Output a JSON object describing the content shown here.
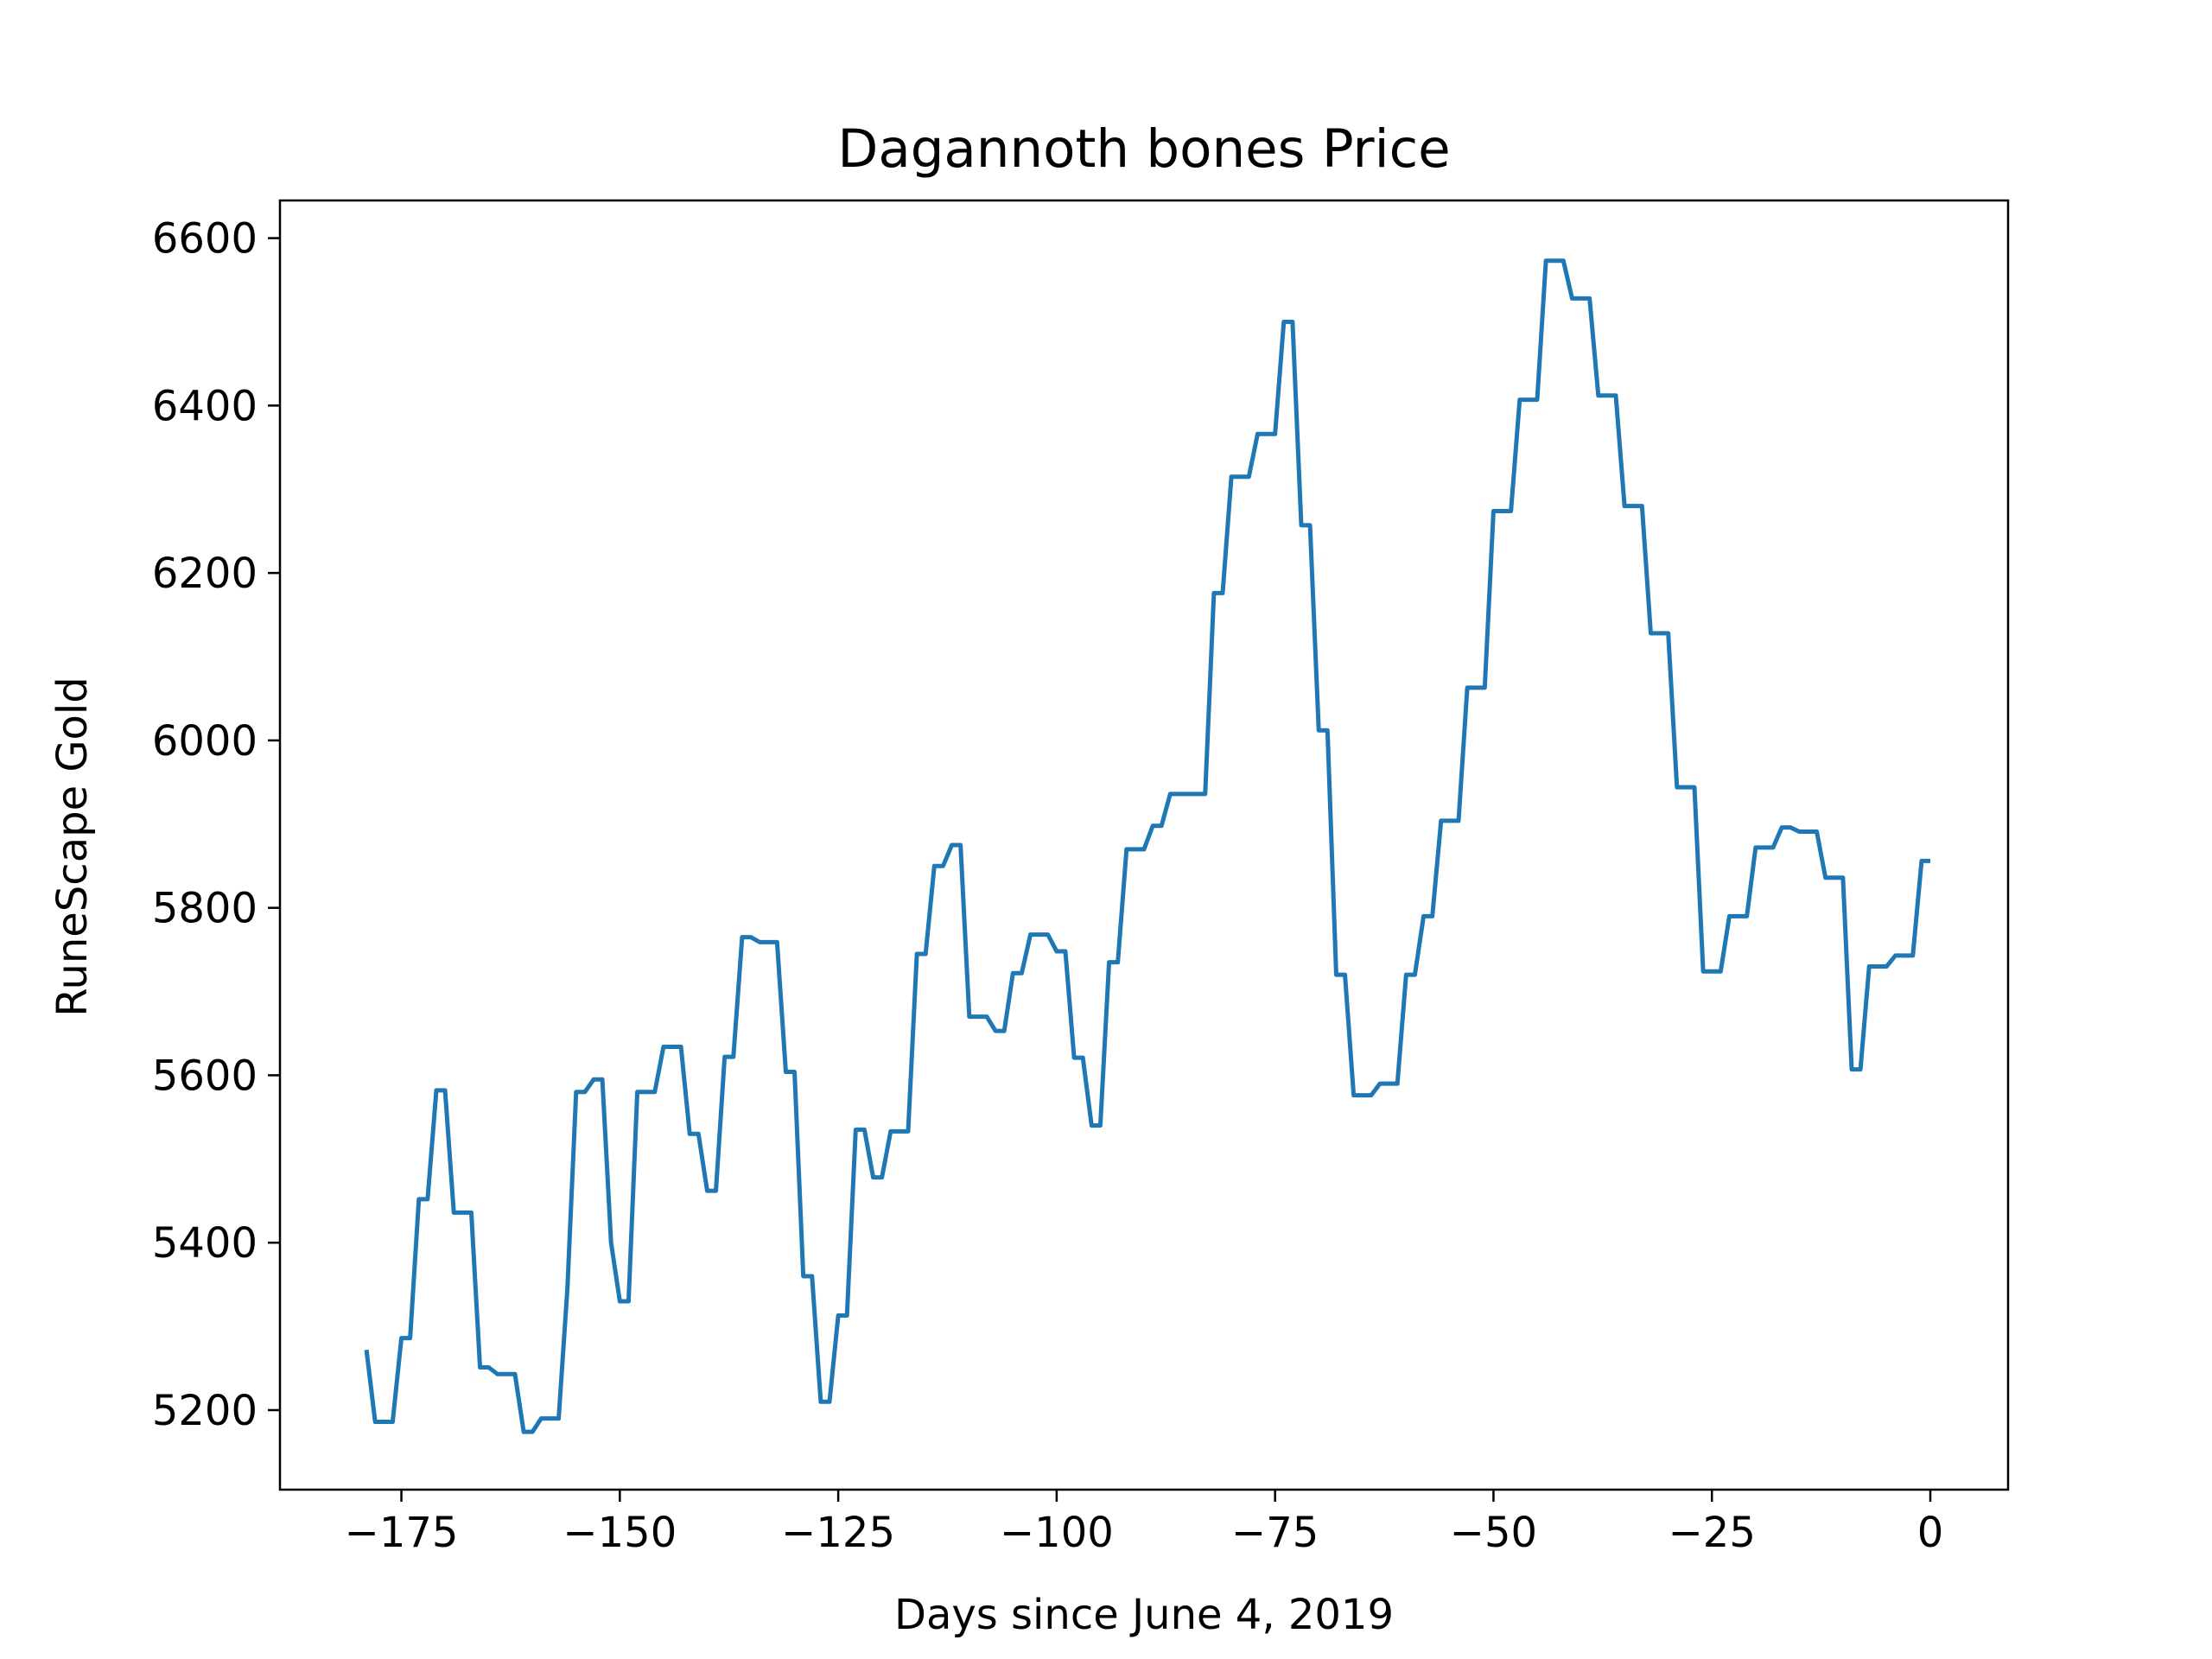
{
  "chart_data": {
    "type": "line",
    "title": "Dagannoth bones Price",
    "xlabel": "Days since June 4, 2019",
    "ylabel": "RuneScape Gold",
    "xlim": [
      -188.9,
      8.9
    ],
    "ylim": [
      5105,
      6645
    ],
    "x_ticks": [
      -175,
      -150,
      -125,
      -100,
      -75,
      -50,
      -25,
      0
    ],
    "x_tick_labels": [
      "−175",
      "−150",
      "−125",
      "−100",
      "−75",
      "−50",
      "−25",
      "0"
    ],
    "y_ticks": [
      5200,
      5400,
      5600,
      5800,
      6000,
      6200,
      6400,
      6600
    ],
    "y_tick_labels": [
      "5200",
      "5400",
      "5600",
      "5800",
      "6000",
      "6200",
      "6400",
      "6600"
    ],
    "grid": false,
    "series_color": "#1f77b4",
    "series": [
      {
        "x": [
          -179,
          -178,
          -177,
          -176,
          -175,
          -174,
          -173,
          -172,
          -171,
          -170,
          -169,
          -168,
          -167,
          -166,
          -165,
          -164,
          -163,
          -162,
          -161,
          -160,
          -159,
          -158,
          -157,
          -156,
          -155,
          -154,
          -153,
          -152,
          -151,
          -150,
          -149,
          -148,
          -147,
          -146,
          -145,
          -144,
          -143,
          -142,
          -141,
          -140,
          -139,
          -138,
          -137,
          -136,
          -135,
          -134,
          -133,
          -132,
          -131,
          -130,
          -129,
          -128,
          -127,
          -126,
          -125,
          -124,
          -123,
          -122,
          -121,
          -120,
          -119,
          -118,
          -117,
          -116,
          -115,
          -114,
          -113,
          -112,
          -111,
          -110,
          -109,
          -108,
          -107,
          -106,
          -105,
          -104,
          -103,
          -102,
          -101,
          -100,
          -99,
          -98,
          -97,
          -96,
          -95,
          -94,
          -93,
          -92,
          -91,
          -90,
          -89,
          -88,
          -87,
          -86,
          -85,
          -84,
          -83,
          -82,
          -81,
          -80,
          -79,
          -78,
          -77,
          -76,
          -75,
          -74,
          -73,
          -72,
          -71,
          -70,
          -69,
          -68,
          -67,
          -66,
          -65,
          -64,
          -63,
          -62,
          -61,
          -60,
          -59,
          -58,
          -57,
          -56,
          -55,
          -54,
          -53,
          -52,
          -51,
          -50,
          -49,
          -48,
          -47,
          -46,
          -45,
          -44,
          -43,
          -42,
          -41,
          -40,
          -39,
          -38,
          -37,
          -36,
          -35,
          -34,
          -33,
          -32,
          -31,
          -30,
          -29,
          -28,
          -27,
          -26,
          -25,
          -24,
          -23,
          -22,
          -21,
          -20,
          -19,
          -18,
          -17,
          -16,
          -15,
          -14,
          -13,
          -12,
          -11,
          -10,
          -9,
          -8,
          -7,
          -6,
          -5,
          -4,
          -3,
          -2,
          -1,
          0
        ],
        "y": [
          5272,
          5186,
          5186,
          5186,
          5286,
          5286,
          5452,
          5452,
          5582,
          5582,
          5436,
          5436,
          5436,
          5251,
          5251,
          5243,
          5243,
          5243,
          5174,
          5174,
          5190,
          5190,
          5190,
          5345,
          5580,
          5580,
          5595,
          5595,
          5400,
          5330,
          5330,
          5580,
          5580,
          5580,
          5634,
          5634,
          5634,
          5530,
          5530,
          5462,
          5462,
          5622,
          5622,
          5765,
          5765,
          5759,
          5759,
          5759,
          5604,
          5604,
          5360,
          5360,
          5210,
          5210,
          5313,
          5313,
          5535,
          5535,
          5478,
          5478,
          5533,
          5533,
          5533,
          5745,
          5745,
          5850,
          5850,
          5875,
          5875,
          5670,
          5670,
          5670,
          5653,
          5653,
          5722,
          5722,
          5768,
          5768,
          5768,
          5748,
          5748,
          5621,
          5621,
          5540,
          5540,
          5735,
          5735,
          5870,
          5870,
          5870,
          5898,
          5898,
          5936,
          5936,
          5936,
          5936,
          5936,
          6176,
          6176,
          6315,
          6315,
          6315,
          6366,
          6366,
          6366,
          6500,
          6500,
          6257,
          6257,
          6012,
          6012,
          5720,
          5720,
          5576,
          5576,
          5576,
          5590,
          5590,
          5590,
          5720,
          5720,
          5790,
          5790,
          5904,
          5904,
          5904,
          6063,
          6063,
          6063,
          6274,
          6274,
          6274,
          6407,
          6407,
          6407,
          6573,
          6573,
          6573,
          6528,
          6528,
          6528,
          6412,
          6412,
          6412,
          6280,
          6280,
          6280,
          6128,
          6128,
          6128,
          5944,
          5944,
          5944,
          5724,
          5724,
          5724,
          5790,
          5790,
          5790,
          5872,
          5872,
          5872,
          5896,
          5896,
          5891,
          5891,
          5891,
          5836,
          5836,
          5836,
          5607,
          5607,
          5730,
          5730,
          5730,
          5743,
          5743,
          5743,
          5856,
          5856
        ]
      }
    ]
  }
}
